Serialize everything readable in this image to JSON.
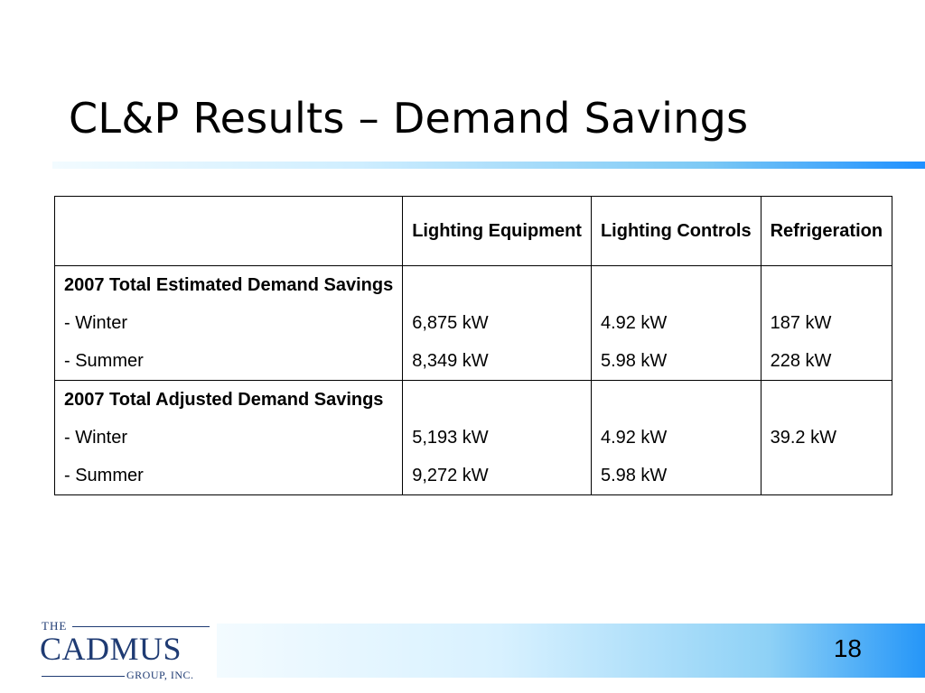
{
  "slide": {
    "title": "CL&P Results – Demand Savings",
    "page_number": "18"
  },
  "table": {
    "headers": [
      "",
      "Lighting Equipment",
      "Lighting Controls",
      "Refrigeration"
    ],
    "estimated": {
      "label": "2007 Total Estimated Demand Savings",
      "winter": {
        "label": "- Winter",
        "lighting_equipment": "6,875 kW",
        "lighting_controls": "4.92 kW",
        "refrigeration": "187 kW"
      },
      "summer": {
        "label": "- Summer",
        "lighting_equipment": "8,349 kW",
        "lighting_controls": "5.98 kW",
        "refrigeration": "228 kW"
      }
    },
    "adjusted": {
      "label": "2007 Total Adjusted Demand Savings",
      "winter": {
        "label": "- Winter",
        "lighting_equipment": "5,193 kW",
        "lighting_controls": "4.92 kW"
      },
      "summer": {
        "label": "- Summer",
        "lighting_equipment": "9,272 kW",
        "lighting_controls": "5.98 kW"
      },
      "refrigeration_combined": "39.2 kW"
    }
  },
  "logo": {
    "the": "THE",
    "name": "CADMUS",
    "sub": "GROUP, INC."
  },
  "colors": {
    "accent_blue": "#1e90ff",
    "logo_navy": "#1f3b73"
  }
}
